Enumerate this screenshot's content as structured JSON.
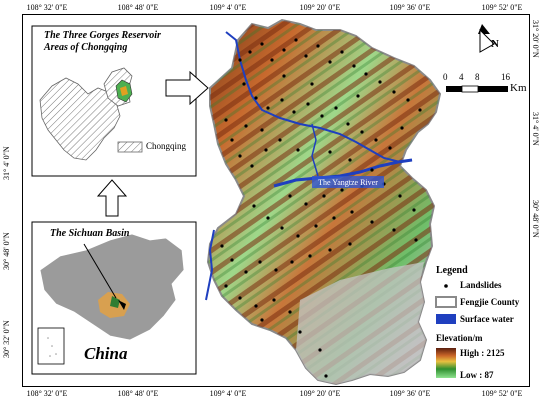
{
  "graticule": {
    "longitudes": [
      "108° 32' 0\"E",
      "108° 48' 0\"E",
      "109° 4' 0\"E",
      "109° 20' 0\"E",
      "109° 36' 0\"E",
      "109° 52' 0\"E"
    ],
    "latitudes_left": [
      "31° 4' 0\"N",
      "30° 48' 0\"N",
      "30° 32' 0\"N"
    ],
    "latitudes_right": [
      "31° 20' 0\"N",
      "31° 4' 0\"N",
      "30° 48' 0\"N"
    ]
  },
  "inset_reservoir": {
    "title_line1": "The Three Gorges Reservoir",
    "title_line2": "Areas of Chongqing",
    "legend_label": "Chongqing"
  },
  "inset_basin": {
    "title": "The Sichuan Basin",
    "country_label": "China"
  },
  "river_label": "The Yangtze River",
  "scale_bar": {
    "labels": [
      "0",
      "4",
      "8",
      "16"
    ],
    "unit": "Km"
  },
  "north_arrow": {
    "letter": "N"
  },
  "legend": {
    "title": "Legend",
    "items": [
      {
        "label": "Landslides",
        "symbol": "dot"
      },
      {
        "label": "Fengjie County",
        "symbol": "outline"
      },
      {
        "label": "Surface water",
        "symbol": "water"
      }
    ],
    "elevation_title": "Elevation/m",
    "high_label": "High : 2125",
    "low_label": "Low : 87"
  },
  "colors": {
    "surface_water": "#1f3fbf",
    "county_outline": "#8a8a8a",
    "landslide_dot": "#000000",
    "elevation_high": "#5a1e0e",
    "elevation_mid": "#c86428",
    "elevation_low": "#8fe28f"
  }
}
